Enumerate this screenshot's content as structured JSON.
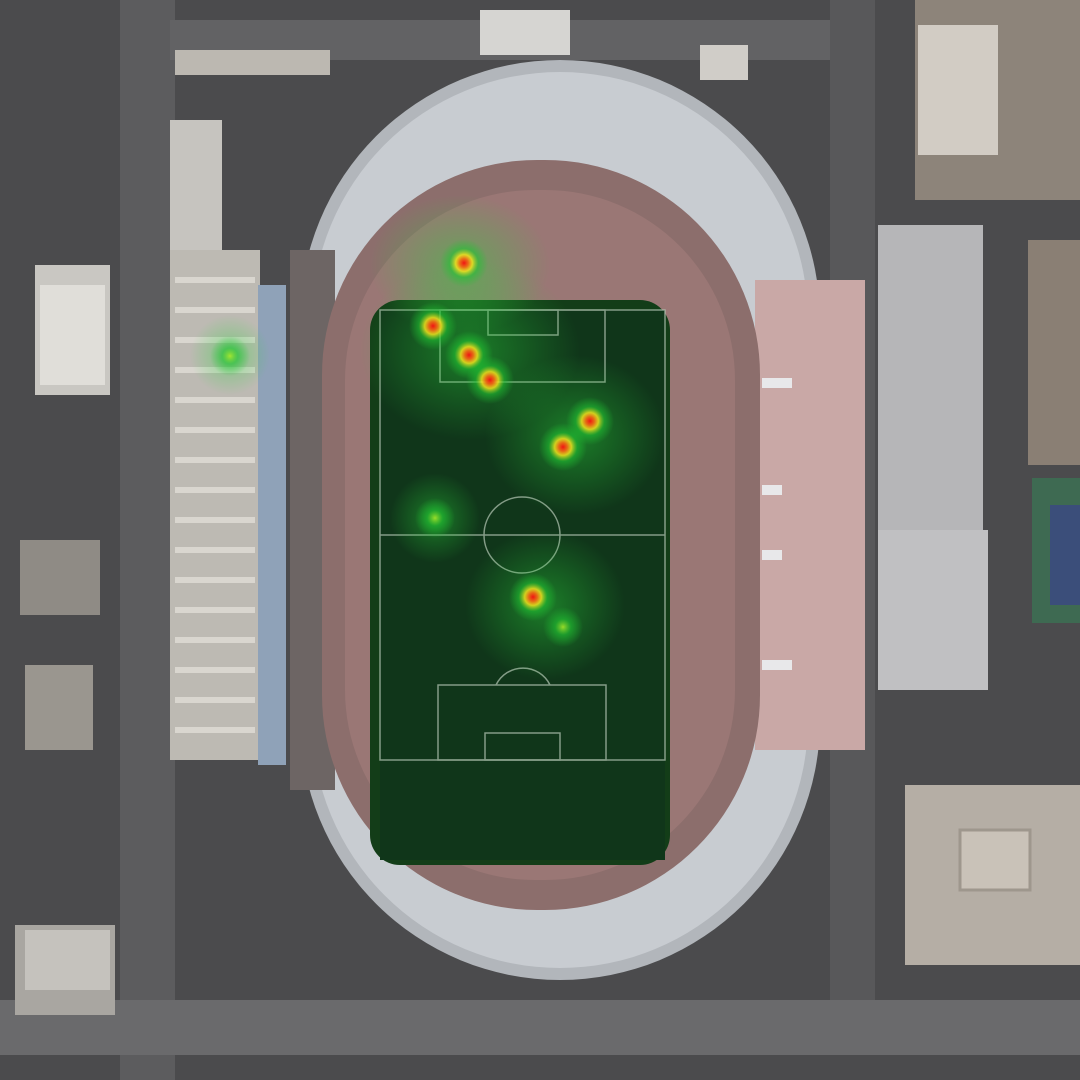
{
  "scene": {
    "kind": "satellite image of a stadium with heatmap overlay",
    "palette": {
      "ground": "#4a4a4a",
      "road": "#5a5a5a",
      "track": "#8a6a6a",
      "roof": "#b8b8b8",
      "seats": "#c9cdd2",
      "pitch": "#0f3a14",
      "pitch_lines": "#c8d8c8",
      "heat_low": "#21c232",
      "heat_mid": "#f3e21d",
      "heat_high": "#f01414"
    }
  },
  "heatmap": {
    "hotspots": [
      {
        "id": "hotspot-1",
        "level": 1.0
      },
      {
        "id": "hotspot-2",
        "level": 1.0
      },
      {
        "id": "hotspot-3",
        "level": 1.0
      },
      {
        "id": "hotspot-4",
        "level": 0.8
      },
      {
        "id": "hotspot-5",
        "level": 1.0
      },
      {
        "id": "hotspot-6",
        "level": 1.0
      },
      {
        "id": "hotspot-7",
        "level": 0.9
      },
      {
        "id": "hotspot-8",
        "level": 0.35
      },
      {
        "id": "hotspot-9",
        "level": 0.4
      },
      {
        "id": "hotspot-10",
        "level": 0.4
      }
    ]
  }
}
